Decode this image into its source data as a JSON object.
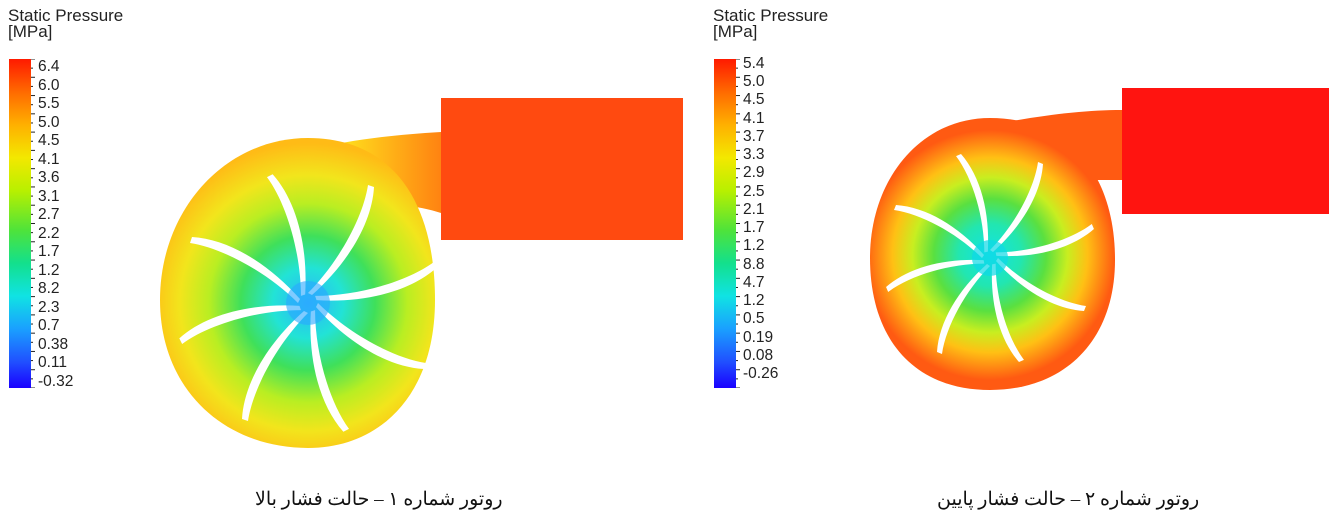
{
  "panels": [
    {
      "legend_title": "Static Pressure",
      "legend_unit": "[MPa]",
      "ticks": [
        "6.4",
        "6.0",
        "5.5",
        "5.0",
        "4.5",
        "4.1",
        "3.6",
        "3.1",
        "2.7",
        "2.2",
        "1.7",
        "1.2",
        "8.2",
        "2.3",
        "0.7",
        "0.38",
        "0.11",
        "-0.32"
      ],
      "caption": "روتور شماره ۱ – حالت فشار بالا"
    },
    {
      "legend_title": "Static Pressure",
      "legend_unit": "[MPa]",
      "ticks": [
        "5.4",
        "5.0",
        "4.5",
        "4.1",
        "3.7",
        "3.3",
        "2.9",
        "2.5",
        "2.1",
        "1.7",
        "1.2",
        "8.8",
        "4.7",
        "1.2",
        "0.5",
        "0.19",
        "0.08",
        "-0.26"
      ],
      "caption": "روتور شماره ۲ – حالت فشار پایین"
    }
  ],
  "colors": {
    "low": "#1a00ff",
    "mid": "#4fe33a",
    "high": "#ff1a00"
  }
}
